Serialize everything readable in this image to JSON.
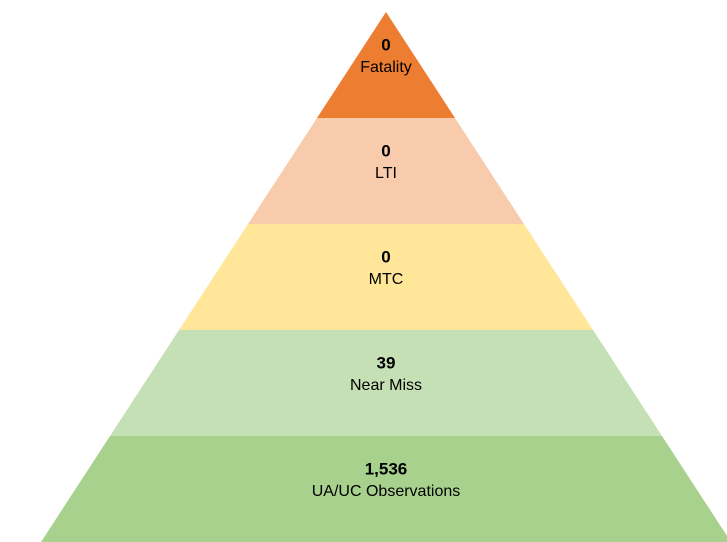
{
  "levels": [
    {
      "value": "0",
      "label": "Fatality",
      "color": "#ed7d31"
    },
    {
      "value": "0",
      "label": "LTI",
      "color": "#f8cbad"
    },
    {
      "value": "0",
      "label": "MTC",
      "color": "#ffe699"
    },
    {
      "value": "39",
      "label": "Near Miss",
      "color": "#c5e0b4"
    },
    {
      "value": "1,536",
      "label": "UA/UC Observations",
      "color": "#a9d18e"
    }
  ]
}
